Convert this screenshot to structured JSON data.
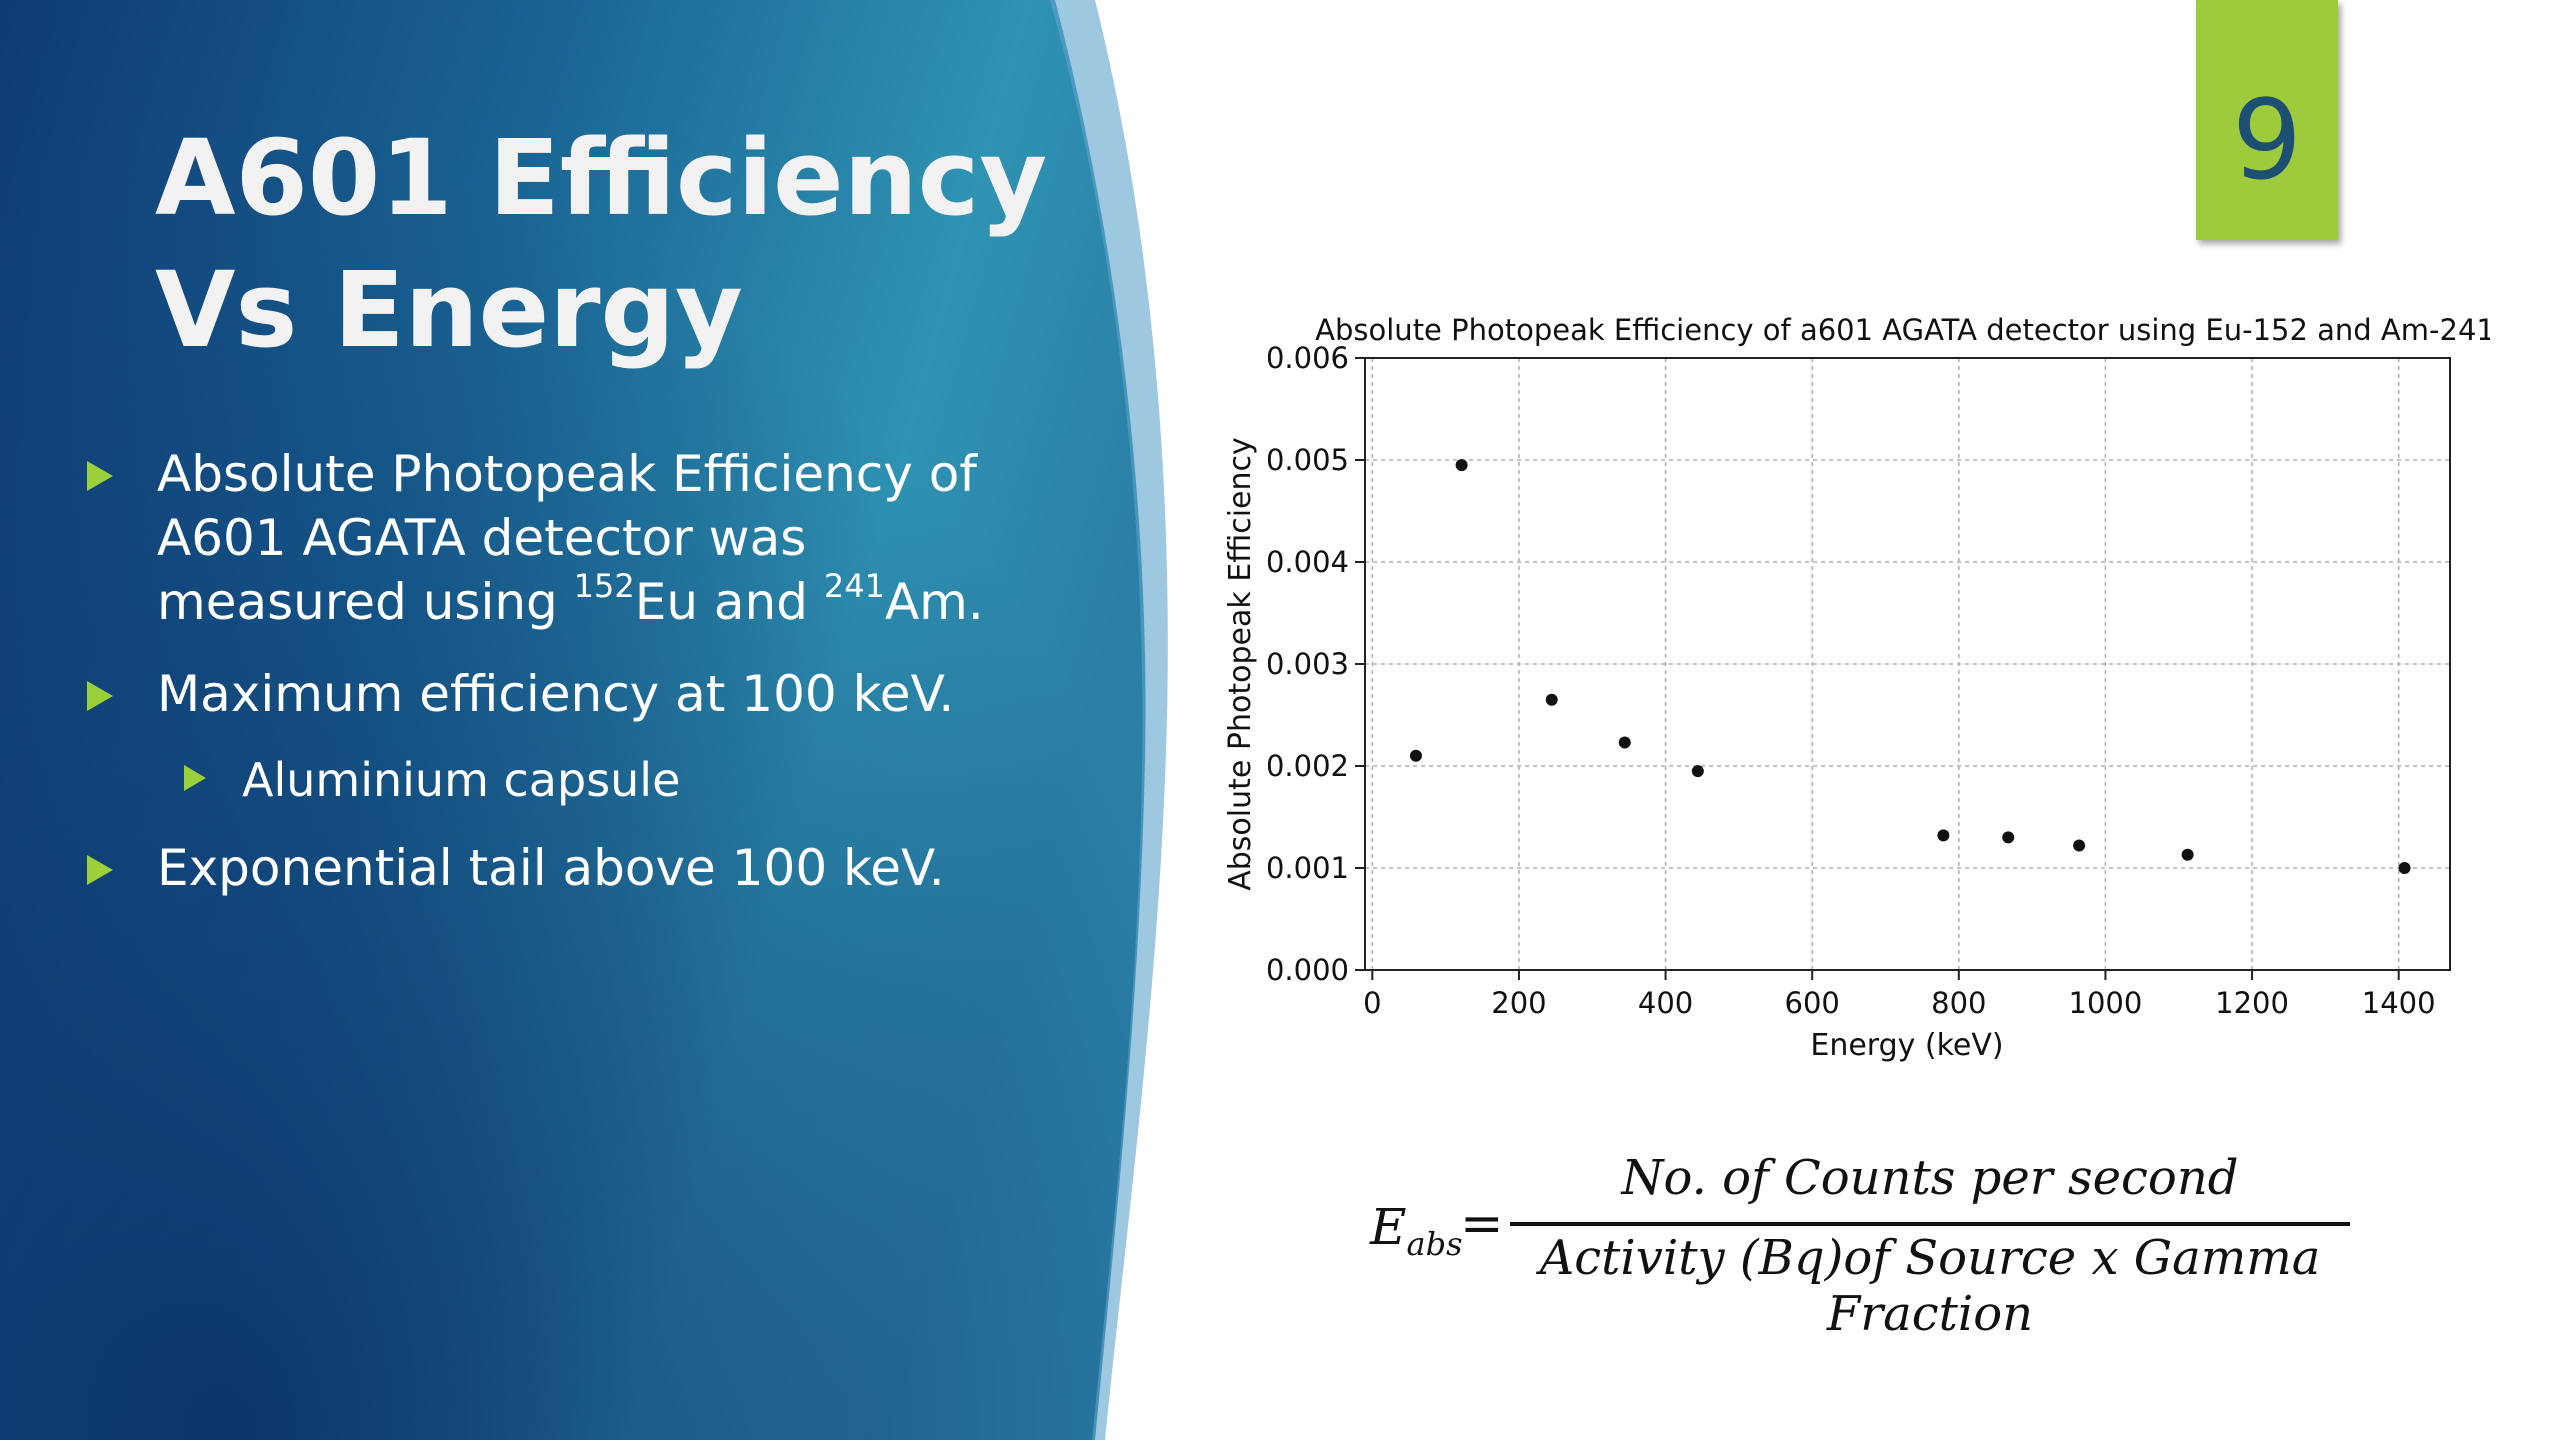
{
  "slide": {
    "title_line1": "A601 Efficiency",
    "title_line2": "Vs Energy",
    "page_number": "9",
    "bullets": {
      "b1_line1": "Absolute Photopeak Efficiency of",
      "b1_line2": "A601 AGATA detector was",
      "b1_line3_pre": "measured using ",
      "b1_sup1": "152",
      "b1_mid": "Eu and ",
      "b1_sup2": "241",
      "b1_post": "Am.",
      "b2": "Maximum efficiency at 100 keV.",
      "b2_sub": "Aluminium capsule",
      "b3": "Exponential tail above 100 keV."
    },
    "formula": {
      "lhs": "E",
      "lhs_sub": "abs",
      "equals": "=",
      "numerator": "No. of Counts per second",
      "denominator": "Activity (Bq)of Source x Gamma Fraction"
    }
  },
  "colors": {
    "bullet_arrow": "#9bd03a",
    "page_badge": "#9ecb3c",
    "panel_dark": "#0e3a73",
    "panel_light": "#2f93b2"
  },
  "chart_data": {
    "type": "scatter",
    "title": "Absolute Photopeak Efficiency of a601 AGATA detector using Eu-152 and Am-241",
    "xlabel": "Energy (keV)",
    "ylabel": "Absolute Photopeak Efficiency",
    "xlim": [
      -10,
      1470
    ],
    "ylim": [
      0,
      0.006
    ],
    "xticks": [
      0,
      200,
      400,
      600,
      800,
      1000,
      1200,
      1400
    ],
    "xtick_labels": [
      "0",
      "200",
      "400",
      "600",
      "800",
      "1000",
      "1200",
      "1400"
    ],
    "yticks": [
      0,
      0.001,
      0.002,
      0.003,
      0.004,
      0.005,
      0.006
    ],
    "ytick_labels": [
      "0.000",
      "0.001",
      "0.002",
      "0.003",
      "0.004",
      "0.005",
      "0.006"
    ],
    "grid": true,
    "x": [
      59.5,
      121.8,
      244.7,
      344.3,
      444.0,
      778.9,
      867.4,
      964.1,
      1112.1,
      1408.0
    ],
    "y": [
      0.0021,
      0.00495,
      0.00265,
      0.00223,
      0.00195,
      0.00132,
      0.0013,
      0.00122,
      0.00113,
      0.001
    ]
  }
}
